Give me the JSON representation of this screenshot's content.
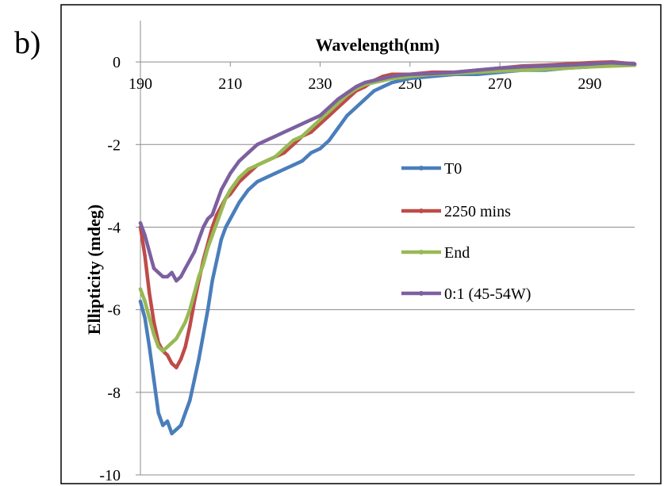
{
  "panel_label": "b)",
  "chart_data": {
    "type": "line",
    "title": "",
    "xlabel": "Wavelength(nm)",
    "ylabel": "Ellipticity (mdeg)",
    "xlim": [
      190,
      300
    ],
    "ylim": [
      -10,
      1
    ],
    "x_ticks": [
      190,
      210,
      230,
      250,
      270,
      290
    ],
    "y_ticks": [
      0,
      -2,
      -4,
      -6,
      -8,
      -10
    ],
    "grid": "horizontal",
    "legend_position": "right-center",
    "series": [
      {
        "name": "T0",
        "color": "#4a7ebb",
        "x": [
          190,
          191,
          192,
          193,
          194,
          195,
          196,
          197,
          198,
          199,
          200,
          201,
          202,
          203,
          204,
          205,
          206,
          207,
          208,
          209,
          210,
          212,
          214,
          216,
          218,
          220,
          222,
          224,
          226,
          228,
          230,
          232,
          234,
          236,
          238,
          240,
          242,
          244,
          246,
          248,
          250,
          255,
          260,
          265,
          270,
          275,
          280,
          285,
          290,
          295,
          300
        ],
        "y": [
          -5.8,
          -6.2,
          -6.9,
          -7.7,
          -8.5,
          -8.8,
          -8.7,
          -9.0,
          -8.9,
          -8.8,
          -8.5,
          -8.2,
          -7.7,
          -7.2,
          -6.6,
          -6.0,
          -5.3,
          -4.8,
          -4.3,
          -4.0,
          -3.8,
          -3.4,
          -3.1,
          -2.9,
          -2.8,
          -2.7,
          -2.6,
          -2.5,
          -2.4,
          -2.2,
          -2.1,
          -1.9,
          -1.6,
          -1.3,
          -1.1,
          -0.9,
          -0.7,
          -0.6,
          -0.5,
          -0.45,
          -0.4,
          -0.35,
          -0.3,
          -0.3,
          -0.25,
          -0.2,
          -0.2,
          -0.15,
          -0.12,
          -0.08,
          -0.05
        ]
      },
      {
        "name": "2250 mins",
        "color": "#be4b48",
        "x": [
          190,
          191,
          192,
          193,
          194,
          195,
          196,
          197,
          198,
          199,
          200,
          201,
          202,
          203,
          204,
          205,
          206,
          207,
          208,
          209,
          210,
          212,
          214,
          216,
          218,
          220,
          222,
          224,
          226,
          228,
          230,
          232,
          234,
          236,
          238,
          240,
          242,
          244,
          246,
          248,
          250,
          255,
          260,
          265,
          270,
          275,
          280,
          285,
          290,
          295,
          300
        ],
        "y": [
          -4.0,
          -4.7,
          -5.6,
          -6.3,
          -6.8,
          -7.0,
          -7.1,
          -7.3,
          -7.4,
          -7.2,
          -6.9,
          -6.4,
          -5.8,
          -5.3,
          -4.8,
          -4.4,
          -4.0,
          -3.7,
          -3.5,
          -3.3,
          -3.2,
          -2.9,
          -2.7,
          -2.5,
          -2.4,
          -2.3,
          -2.2,
          -2.0,
          -1.8,
          -1.7,
          -1.5,
          -1.3,
          -1.1,
          -0.9,
          -0.7,
          -0.6,
          -0.45,
          -0.35,
          -0.3,
          -0.3,
          -0.3,
          -0.25,
          -0.25,
          -0.2,
          -0.15,
          -0.1,
          -0.08,
          -0.05,
          -0.02,
          0.0,
          -0.05
        ]
      },
      {
        "name": "End",
        "color": "#98b954",
        "x": [
          190,
          191,
          192,
          193,
          194,
          195,
          196,
          197,
          198,
          199,
          200,
          201,
          202,
          203,
          204,
          205,
          206,
          207,
          208,
          209,
          210,
          212,
          214,
          216,
          218,
          220,
          222,
          224,
          226,
          228,
          230,
          232,
          234,
          236,
          238,
          240,
          242,
          244,
          246,
          248,
          250,
          255,
          260,
          265,
          270,
          275,
          280,
          285,
          290,
          295,
          300
        ],
        "y": [
          -5.5,
          -5.8,
          -6.2,
          -6.6,
          -6.9,
          -7.0,
          -6.9,
          -6.8,
          -6.7,
          -6.5,
          -6.3,
          -6.0,
          -5.6,
          -5.2,
          -4.9,
          -4.5,
          -4.2,
          -3.9,
          -3.6,
          -3.3,
          -3.1,
          -2.8,
          -2.6,
          -2.5,
          -2.4,
          -2.3,
          -2.1,
          -1.9,
          -1.8,
          -1.6,
          -1.4,
          -1.2,
          -1.0,
          -0.8,
          -0.65,
          -0.55,
          -0.5,
          -0.45,
          -0.4,
          -0.38,
          -0.35,
          -0.3,
          -0.28,
          -0.25,
          -0.22,
          -0.2,
          -0.18,
          -0.15,
          -0.12,
          -0.1,
          -0.08
        ]
      },
      {
        "name": "0:1 (45-54W)",
        "color": "#7d60a0",
        "x": [
          190,
          191,
          192,
          193,
          194,
          195,
          196,
          197,
          198,
          199,
          200,
          201,
          202,
          203,
          204,
          205,
          206,
          207,
          208,
          209,
          210,
          212,
          214,
          216,
          218,
          220,
          222,
          224,
          226,
          228,
          230,
          232,
          234,
          236,
          238,
          240,
          242,
          244,
          246,
          248,
          250,
          255,
          260,
          265,
          270,
          275,
          280,
          285,
          290,
          295,
          300
        ],
        "y": [
          -3.9,
          -4.2,
          -4.6,
          -5.0,
          -5.1,
          -5.2,
          -5.2,
          -5.1,
          -5.3,
          -5.2,
          -5.0,
          -4.8,
          -4.6,
          -4.3,
          -4.0,
          -3.8,
          -3.7,
          -3.4,
          -3.1,
          -2.9,
          -2.7,
          -2.4,
          -2.2,
          -2.0,
          -1.9,
          -1.8,
          -1.7,
          -1.6,
          -1.5,
          -1.4,
          -1.3,
          -1.1,
          -0.9,
          -0.75,
          -0.6,
          -0.5,
          -0.45,
          -0.4,
          -0.35,
          -0.32,
          -0.3,
          -0.28,
          -0.25,
          -0.2,
          -0.15,
          -0.12,
          -0.1,
          -0.08,
          -0.05,
          -0.02,
          -0.05
        ]
      }
    ]
  }
}
